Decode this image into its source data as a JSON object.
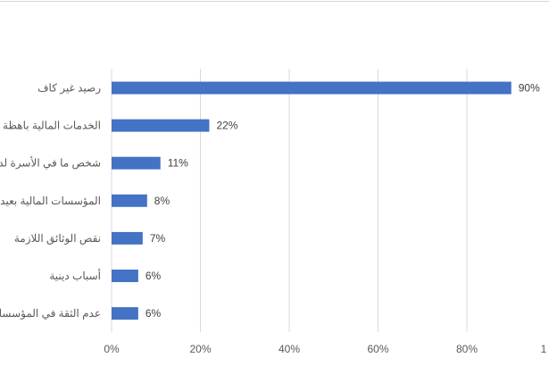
{
  "chart_data": {
    "type": "bar",
    "orientation": "horizontal",
    "categories": [
      "رصيد غير كاف",
      "الخدمات المالية باهظة",
      "شخص ما في الأسرة لدي",
      "المؤسسات المالية بعيدة",
      "نقص الوثائق اللازمة",
      "أسباب دينية",
      "عدم الثقة في المؤسسات"
    ],
    "values": [
      90,
      22,
      11,
      8,
      7,
      6,
      6
    ],
    "data_labels": [
      "90%",
      "22%",
      "11%",
      "8%",
      "7%",
      "6%",
      "6%"
    ],
    "xlim": [
      0,
      100
    ],
    "x_ticks": [
      "0%",
      "20%",
      "40%",
      "60%",
      "80%",
      "1"
    ],
    "grid": true,
    "bar_color": "#4472c4"
  }
}
